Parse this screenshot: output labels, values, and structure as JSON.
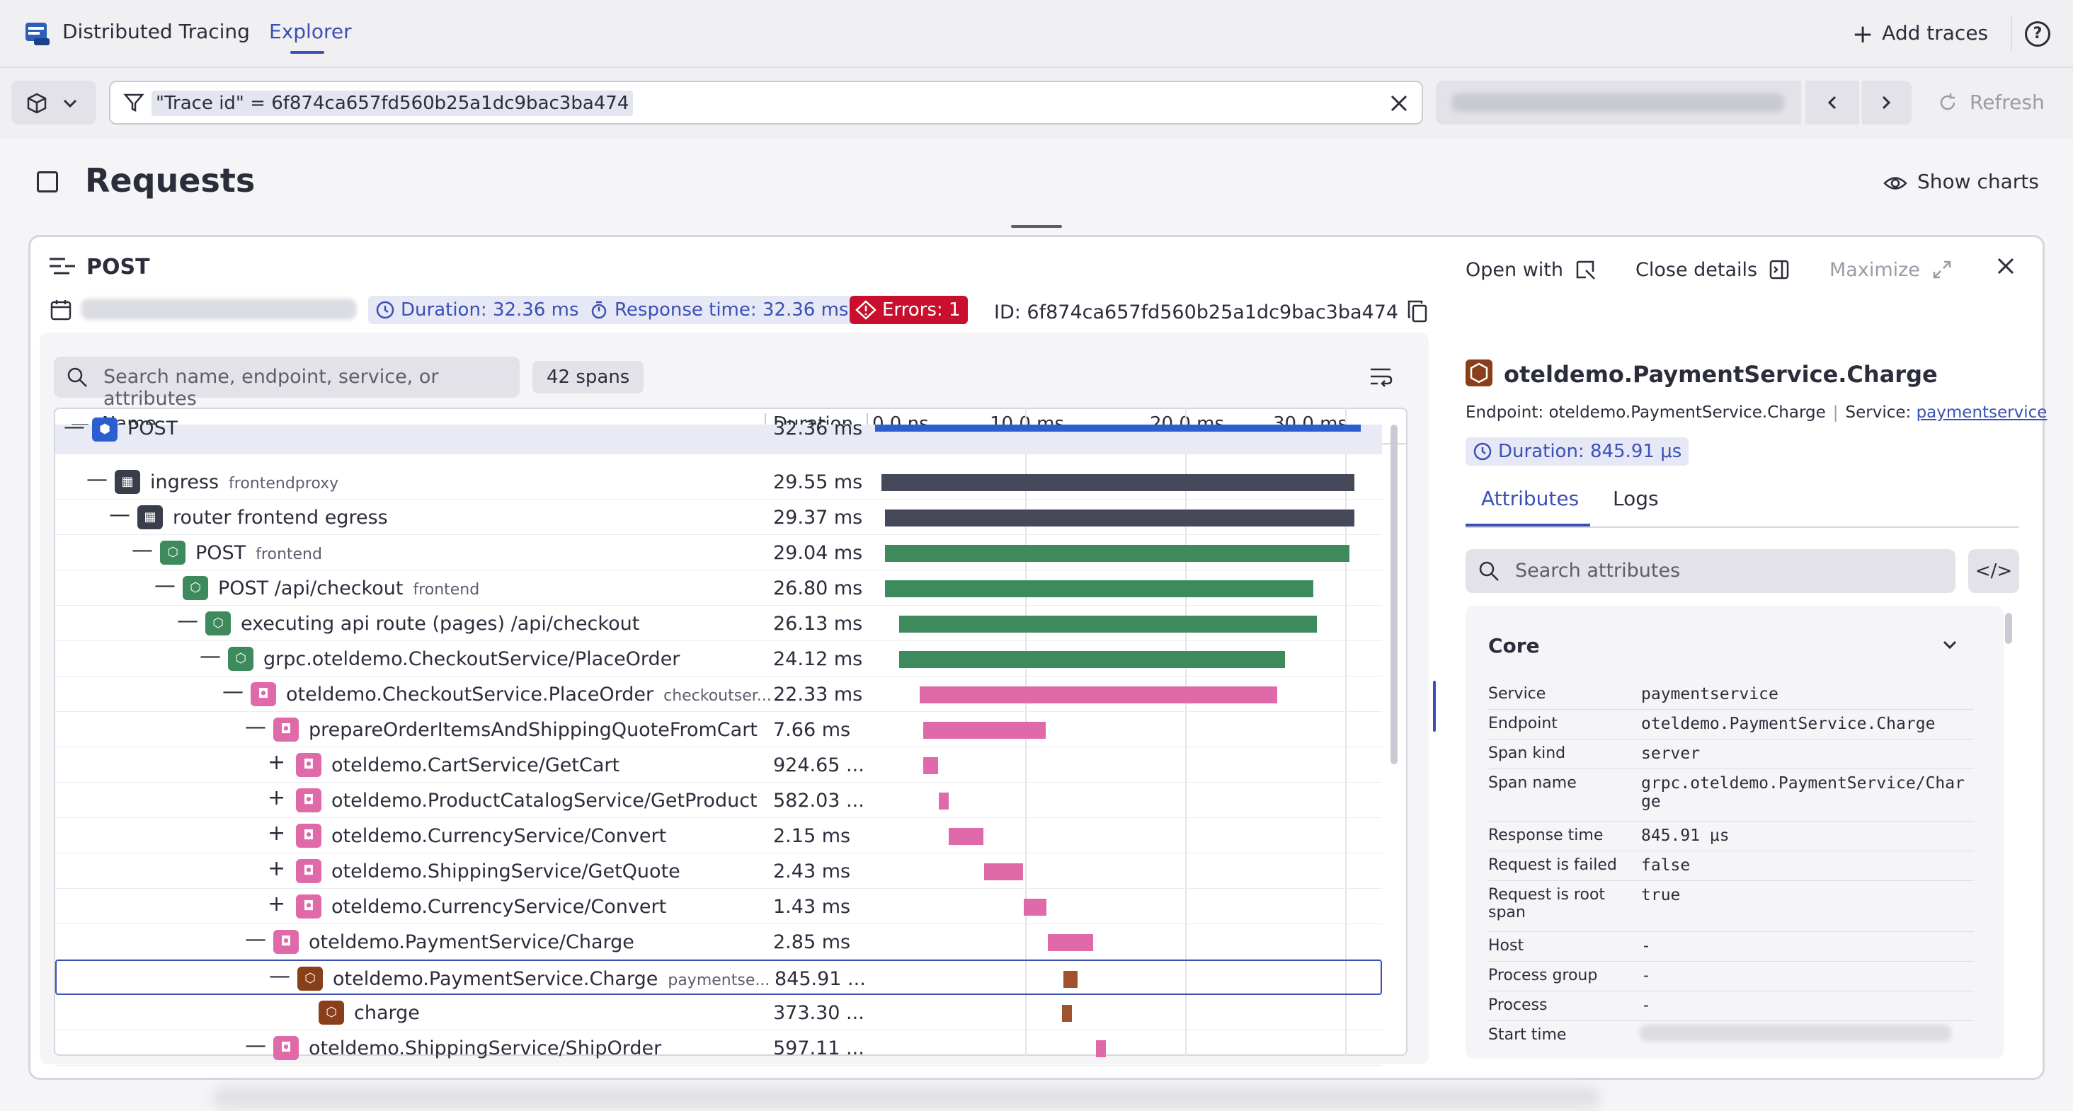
{
  "app": {
    "title": "Distributed Tracing",
    "tab": "Explorer",
    "add_traces": "Add traces",
    "help": "?"
  },
  "filter": {
    "chip": "\"Trace id\" = 6f874ca657fd560b25a1dc9bac3ba474",
    "refresh": "Refresh"
  },
  "page": {
    "title": "Requests",
    "show_charts": "Show charts"
  },
  "panel": {
    "title": "POST",
    "open_with": "Open with",
    "close_details": "Close details",
    "maximize": "Maximize",
    "duration": "Duration: 32.36 ms",
    "response_time": "Response time: 32.36 ms",
    "errors": "Errors: 1",
    "trace_id": "ID: 6f874ca657fd560b25a1dc9bac3ba474"
  },
  "tree": {
    "search_placeholder": "Search name, endpoint, service, or attributes",
    "spans_count": "42 spans",
    "col_name": "Name",
    "col_duration": "Duration",
    "ticks": [
      "0.0 ns",
      "10.0 ms",
      "20.0 ms",
      "30.0 ms"
    ],
    "rows": [
      {
        "name": "POST",
        "svc": "",
        "dur": "32.36 ms",
        "ms_start": 0.0,
        "ms_len": 32.36
      },
      {
        "name": "ingress",
        "svc": "frontendproxy",
        "dur": "29.55 ms",
        "ms_start": 0.4,
        "ms_len": 29.55
      },
      {
        "name": "router frontend egress",
        "svc": "",
        "dur": "29.37 ms",
        "ms_start": 0.6,
        "ms_len": 29.37
      },
      {
        "name": "POST",
        "svc": "frontend",
        "dur": "29.04 ms",
        "ms_start": 0.6,
        "ms_len": 29.04
      },
      {
        "name": "POST /api/checkout",
        "svc": "frontend",
        "dur": "26.80 ms",
        "ms_start": 0.6,
        "ms_len": 26.8
      },
      {
        "name": "executing api route (pages) /api/checkout",
        "svc": "",
        "dur": "26.13 ms",
        "ms_start": 1.5,
        "ms_len": 26.13
      },
      {
        "name": "grpc.oteldemo.CheckoutService/PlaceOrder",
        "svc": "",
        "dur": "24.12 ms",
        "ms_start": 1.5,
        "ms_len": 24.12
      },
      {
        "name": "oteldemo.CheckoutService.PlaceOrder",
        "svc": "checkoutser...",
        "dur": "22.33 ms",
        "ms_start": 2.8,
        "ms_len": 22.33
      },
      {
        "name": "prepareOrderItemsAndShippingQuoteFromCart",
        "svc": "",
        "dur": "7.66 ms",
        "ms_start": 3.0,
        "ms_len": 7.66
      },
      {
        "name": "oteldemo.CartService/GetCart",
        "svc": "",
        "dur": "924.65 ...",
        "ms_start": 3.0,
        "ms_len": 0.92
      },
      {
        "name": "oteldemo.ProductCatalogService/GetProduct",
        "svc": "",
        "dur": "582.03 ...",
        "ms_start": 4.0,
        "ms_len": 0.58
      },
      {
        "name": "oteldemo.CurrencyService/Convert",
        "svc": "",
        "dur": "2.15 ms",
        "ms_start": 4.6,
        "ms_len": 2.15
      },
      {
        "name": "oteldemo.ShippingService/GetQuote",
        "svc": "",
        "dur": "2.43 ms",
        "ms_start": 6.8,
        "ms_len": 2.43
      },
      {
        "name": "oteldemo.CurrencyService/Convert",
        "svc": "",
        "dur": "1.43 ms",
        "ms_start": 9.3,
        "ms_len": 1.43
      },
      {
        "name": "oteldemo.PaymentService/Charge",
        "svc": "",
        "dur": "2.85 ms",
        "ms_start": 10.8,
        "ms_len": 2.85
      },
      {
        "name": "oteldemo.PaymentService.Charge",
        "svc": "paymentse...",
        "dur": "845.91 ...",
        "ms_start": 11.7,
        "ms_len": 0.85
      },
      {
        "name": "charge",
        "svc": "",
        "dur": "373.30 ...",
        "ms_start": 11.7,
        "ms_len": 0.37
      },
      {
        "name": "oteldemo.ShippingService/ShipOrder",
        "svc": "",
        "dur": "597.11 ...",
        "ms_start": 13.8,
        "ms_len": 0.6
      }
    ]
  },
  "details": {
    "title": "oteldemo.PaymentService.Charge",
    "endpoint_label": "Endpoint:",
    "endpoint": "oteldemo.PaymentService.Charge",
    "service_label": "Service:",
    "service": "paymentservice",
    "duration": "Duration: 845.91 μs",
    "tab_attributes": "Attributes",
    "tab_logs": "Logs",
    "search_placeholder": "Search attributes",
    "code_icon": "</>",
    "core_title": "Core",
    "attributes": [
      {
        "key": "Service",
        "value": "paymentservice"
      },
      {
        "key": "Endpoint",
        "value": "oteldemo.PaymentService.Charge"
      },
      {
        "key": "Span kind",
        "value": "server"
      },
      {
        "key": "Span name",
        "value": "grpc.oteldemo.PaymentService/Charge"
      },
      {
        "key": "Response time",
        "value": "845.91 μs"
      },
      {
        "key": "Request is failed",
        "value": "false"
      },
      {
        "key": "Request is root span",
        "value": "true"
      },
      {
        "key": "Host",
        "value": "-"
      },
      {
        "key": "Process group",
        "value": "-"
      },
      {
        "key": "Process",
        "value": "-"
      },
      {
        "key": "Start time",
        "value": ""
      }
    ]
  }
}
